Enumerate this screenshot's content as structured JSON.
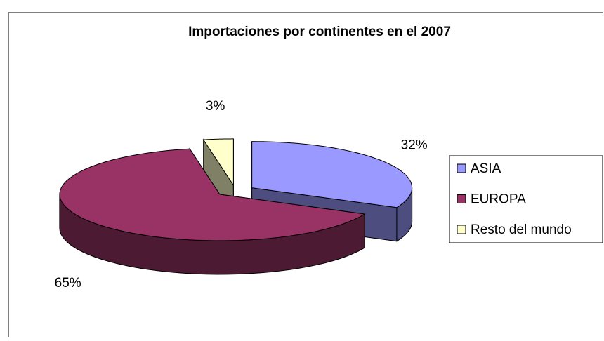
{
  "chart_data": {
    "type": "pie3d",
    "title": "Importaciones por continentes en el 2007",
    "categories": [
      "ASIA",
      "EUROPA",
      "Resto del mundo"
    ],
    "values": [
      32,
      65,
      3
    ],
    "value_labels": [
      "32%",
      "65%",
      "3%"
    ],
    "colors": [
      "#9999ff",
      "#993366",
      "#ffffcc"
    ],
    "legend": "right"
  }
}
